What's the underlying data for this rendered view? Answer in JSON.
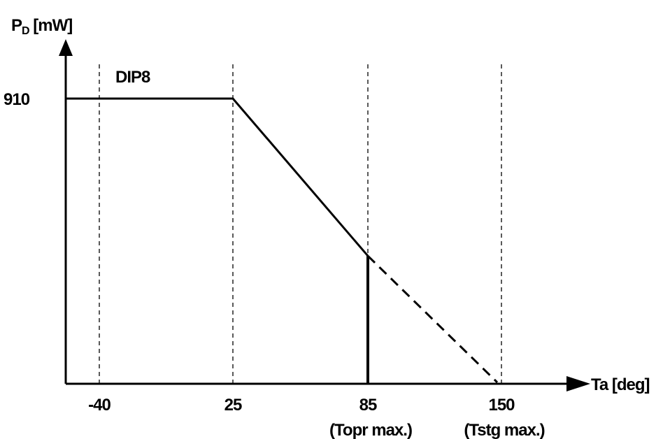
{
  "chart_data": {
    "type": "line",
    "y_axis_label_main": "P",
    "y_axis_label_sub": "D",
    "y_axis_label_unit": " [mW]",
    "x_axis_label": "Ta [deg]",
    "series": [
      {
        "name": "DIP8",
        "points": [
          {
            "x": -40,
            "y": 910
          },
          {
            "x": 25,
            "y": 910
          },
          {
            "x": 85,
            "y": 408
          }
        ]
      }
    ],
    "extrapolation": [
      {
        "x": 85,
        "y": 408
      },
      {
        "x": 150,
        "y": 0
      }
    ],
    "x_ticks": [
      {
        "value": -40,
        "label": "-40",
        "sublabel": ""
      },
      {
        "value": 25,
        "label": "25",
        "sublabel": ""
      },
      {
        "value": 85,
        "label": "85",
        "sublabel": "(Topr max.)"
      },
      {
        "value": 150,
        "label": "150",
        "sublabel": "(Tstg max.)"
      }
    ],
    "y_ticks": [
      {
        "value": 910,
        "label": "910"
      }
    ],
    "operating_limit_x": 85,
    "ylim": [
      0,
      910
    ],
    "grid": "dashed vertical lines at x tick values",
    "legend": "none"
  }
}
